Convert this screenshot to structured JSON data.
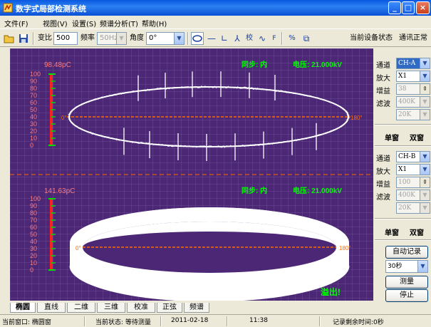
{
  "window": {
    "title": "数字式局部检测系统"
  },
  "menu": [
    "文件(F)",
    "视图(V)",
    "设置(S)",
    "频谱分析(T)",
    "帮助(H)"
  ],
  "toolbar": {
    "ratio_label": "变比",
    "ratio_value": "500",
    "freq_label": "频率",
    "freq_value": "50Hz",
    "angle_label": "角度",
    "angle_value": "0°",
    "calib_label": "校",
    "device_status_label": "当前设备状态",
    "comm_status": "通讯正常"
  },
  "scope_top": {
    "amplitude": "98.48pC",
    "sync": "同步: 内",
    "voltage": "电压: 21.000kV",
    "scale": [
      "100",
      "90",
      "80",
      "70",
      "60",
      "50",
      "40",
      "30",
      "20",
      "10",
      "0"
    ],
    "angle_start": "0°",
    "angle_end": "180°"
  },
  "scope_bottom": {
    "amplitude": "141.63pC",
    "sync": "同步: 内",
    "voltage": "电压: 21.000kV",
    "scale": [
      "100",
      "90",
      "80",
      "70",
      "60",
      "50",
      "40",
      "30",
      "20",
      "10",
      "0"
    ],
    "angle_start": "0°",
    "angle_end": "180°",
    "overflow": "溢出!"
  },
  "channel1": {
    "channel_label": "通道",
    "channel_value": "CH-A",
    "amp_label": "放大",
    "amp_value": "X1",
    "gain_label": "增益",
    "gain_value": "38",
    "filter_label": "滤波",
    "filter_value": "400K",
    "filter2_value": "20K",
    "single": "单窗",
    "dual": "双窗"
  },
  "channel2": {
    "channel_label": "通道",
    "channel_value": "CH-B",
    "amp_label": "放大",
    "amp_value": "X1",
    "gain_label": "增益",
    "gain_value": "100",
    "filter_label": "滤波",
    "filter_value": "400K",
    "filter2_value": "20K",
    "single": "单窗",
    "dual": "双窗"
  },
  "record": {
    "auto_record": "自动记录",
    "interval": "30秒",
    "measure": "测量",
    "stop": "停止"
  },
  "tabs": [
    "椭圆",
    "直线",
    "二维",
    "三维",
    "校准",
    "正弦",
    "频谱"
  ],
  "status": {
    "window": "当前窗口: 椭圆窗",
    "state": "当前状态: 等待测量",
    "date": "2011-02-18",
    "time": "11:38",
    "remaining": "记录剩余时间:0秒"
  },
  "colors": {
    "scope_bg": "#4b2775",
    "trace": "#ffffff",
    "status_text": "#00ff00",
    "amplitude_text": "#ff7a7a",
    "axis_line": "#ff6a00",
    "scale_bar": "#ff2020"
  }
}
